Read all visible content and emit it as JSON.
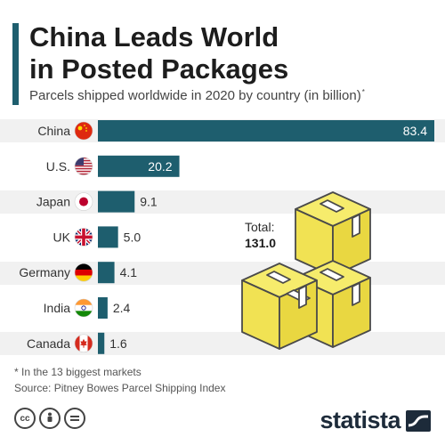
{
  "header": {
    "title_line1": "China Leads World",
    "title_line2": "in Posted Packages",
    "subtitle": "Parcels shipped worldwide in 2020 by country (in billion)",
    "subtitle_marker": "*"
  },
  "chart_data": {
    "type": "bar",
    "orientation": "horizontal",
    "categories": [
      "China",
      "U.S.",
      "Japan",
      "UK",
      "Germany",
      "India",
      "Canada"
    ],
    "values": [
      83.4,
      20.2,
      9.1,
      5.0,
      4.1,
      2.4,
      1.6
    ],
    "value_labels": [
      "83.4",
      "20.2",
      "9.1",
      "5.0",
      "4.1",
      "2.4",
      "1.6"
    ],
    "flags": [
      "china-flag-icon",
      "us-flag-icon",
      "japan-flag-icon",
      "uk-flag-icon",
      "germany-flag-icon",
      "india-flag-icon",
      "canada-flag-icon"
    ],
    "bar_color": "#1e5e6e",
    "title": "China Leads World in Posted Packages",
    "xlim": [
      0,
      83.4
    ],
    "grid": false
  },
  "total": {
    "label": "Total:",
    "value": "131.0"
  },
  "footer": {
    "footnote": "* In the 13 biggest markets",
    "source": "Source: Pitney Bowes Parcel Shipping Index",
    "brand": "statista"
  },
  "colors": {
    "accent": "#1e5e6e",
    "band": "#f1f1f1",
    "box": "#f4e85a",
    "box_stroke": "#4a4a4a"
  }
}
